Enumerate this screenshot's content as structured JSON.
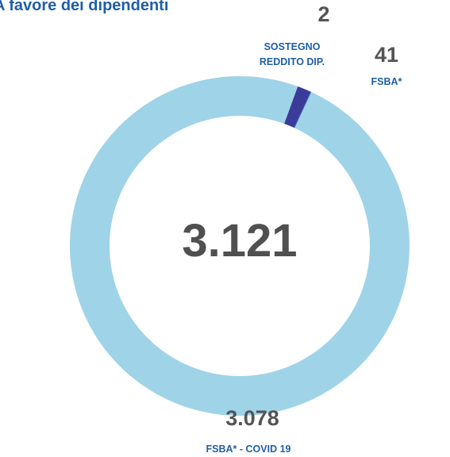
{
  "chart_data": {
    "type": "donut",
    "title": "A favore dei dipendenti",
    "categories": [
      "FSBA*",
      "SOSTEGNO REDDITO DIP.",
      "FSBA* - COVID 19"
    ],
    "values": [
      41,
      2,
      3078
    ],
    "value_labels": [
      "41",
      "2",
      "3.078"
    ],
    "colors": [
      "#3b3b99",
      "#2c5fa8",
      "#9fd3e8"
    ],
    "center_text": "3.121"
  }
}
